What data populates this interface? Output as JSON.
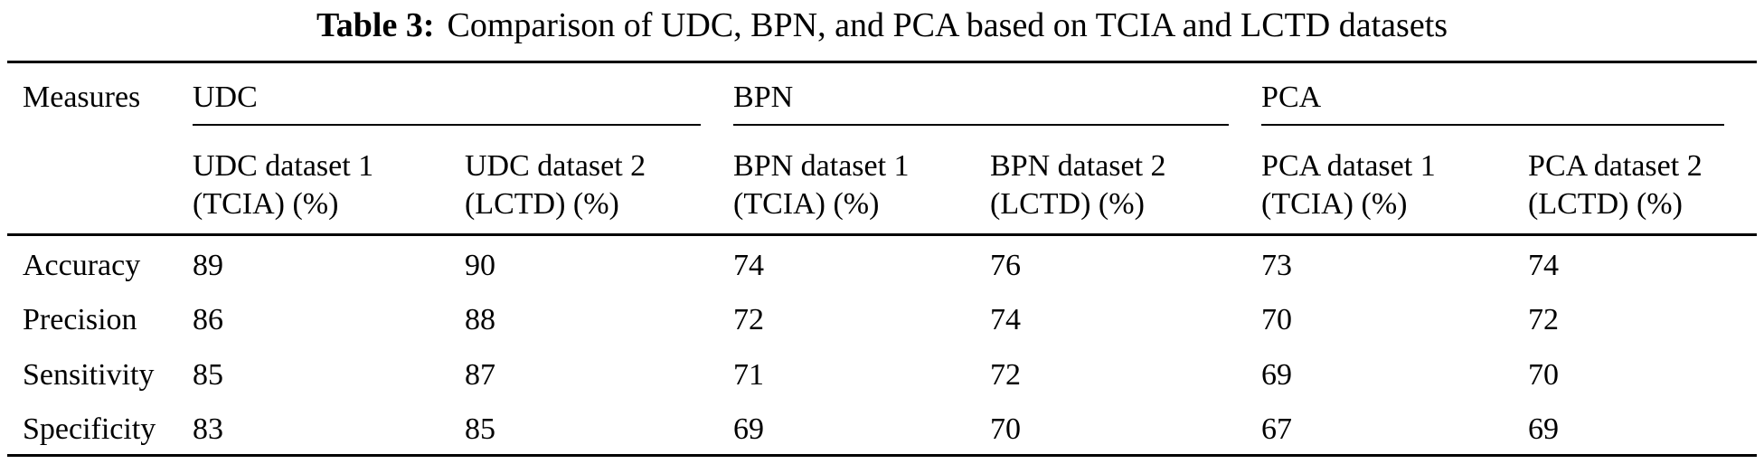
{
  "title": {
    "label": "Table 3:",
    "text": "Comparison of UDC, BPN, and PCA based on TCIA and LCTD datasets"
  },
  "table": {
    "stub_header": "Measures",
    "groups": [
      {
        "label": "UDC"
      },
      {
        "label": "BPN"
      },
      {
        "label": "PCA"
      }
    ],
    "columns": [
      {
        "line1": "UDC dataset 1",
        "line2": "(TCIA) (%)"
      },
      {
        "line1": "UDC dataset 2",
        "line2": "(LCTD) (%)"
      },
      {
        "line1": "BPN dataset 1",
        "line2": "(TCIA) (%)"
      },
      {
        "line1": "BPN dataset 2",
        "line2": "(LCTD) (%)"
      },
      {
        "line1": "PCA dataset 1",
        "line2": "(TCIA) (%)"
      },
      {
        "line1": "PCA dataset 2",
        "line2": "(LCTD) (%)"
      }
    ],
    "rows": [
      {
        "measure": "Accuracy",
        "values": [
          "89",
          "90",
          "74",
          "76",
          "73",
          "74"
        ]
      },
      {
        "measure": "Precision",
        "values": [
          "86",
          "88",
          "72",
          "74",
          "70",
          "72"
        ]
      },
      {
        "measure": "Sensitivity",
        "values": [
          "85",
          "87",
          "71",
          "72",
          "69",
          "70"
        ]
      },
      {
        "measure": "Specificity",
        "values": [
          "83",
          "85",
          "69",
          "70",
          "67",
          "69"
        ]
      }
    ]
  },
  "chart_data": {
    "type": "table",
    "title": "Table 3: Comparison of UDC, BPN, and PCA based on TCIA and LCTD datasets",
    "row_header": "Measures",
    "column_groups": [
      "UDC",
      "BPN",
      "PCA"
    ],
    "columns": [
      "UDC dataset 1 (TCIA) (%)",
      "UDC dataset 2 (LCTD) (%)",
      "BPN dataset 1 (TCIA) (%)",
      "BPN dataset 2 (LCTD) (%)",
      "PCA dataset 1 (TCIA) (%)",
      "PCA dataset 2 (LCTD) (%)"
    ],
    "rows": [
      {
        "measure": "Accuracy",
        "values": [
          89,
          90,
          74,
          76,
          73,
          74
        ]
      },
      {
        "measure": "Precision",
        "values": [
          86,
          88,
          72,
          74,
          70,
          72
        ]
      },
      {
        "measure": "Sensitivity",
        "values": [
          85,
          87,
          71,
          72,
          69,
          70
        ]
      },
      {
        "measure": "Specificity",
        "values": [
          83,
          85,
          69,
          70,
          67,
          69
        ]
      }
    ]
  }
}
